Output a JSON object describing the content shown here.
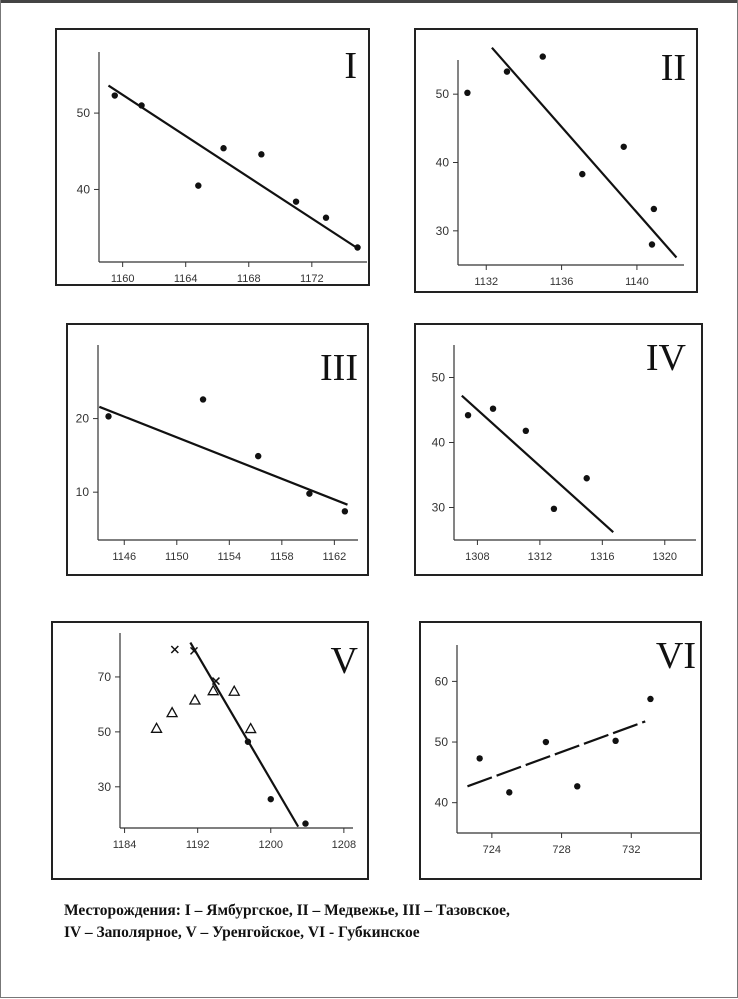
{
  "caption": {
    "line1": "Месторождения: I – Ямбургское, II – Медвежье, III – Тазовское,",
    "line2": "IV – Заполярное, V – Уренгойское, VI - Губкинское"
  },
  "chart_data": [
    {
      "type": "scatter",
      "title": "I",
      "xticks": [
        1160,
        1164,
        1168,
        1172
      ],
      "yticks": [
        40,
        50
      ],
      "xlim": [
        1158.5,
        1175.5
      ],
      "ylim": [
        30.5,
        58
      ],
      "points": [
        {
          "x": 1159.5,
          "y": 52.3,
          "m": "dot"
        },
        {
          "x": 1161.2,
          "y": 51.0,
          "m": "dot"
        },
        {
          "x": 1164.8,
          "y": 40.5,
          "m": "dot"
        },
        {
          "x": 1166.4,
          "y": 45.4,
          "m": "dot"
        },
        {
          "x": 1168.8,
          "y": 44.6,
          "m": "dot"
        },
        {
          "x": 1171.0,
          "y": 38.4,
          "m": "dot"
        },
        {
          "x": 1172.9,
          "y": 36.3,
          "m": "dot"
        },
        {
          "x": 1174.9,
          "y": 32.4,
          "m": "dot"
        }
      ],
      "fit": {
        "x1": 1159.1,
        "y1": 53.6,
        "x2": 1174.9,
        "y2": 32.3
      }
    },
    {
      "type": "scatter",
      "title": "II",
      "xticks": [
        1132,
        1136,
        1140
      ],
      "yticks": [
        30,
        40,
        50
      ],
      "xlim": [
        1130.5,
        1142.5
      ],
      "ylim": [
        25,
        55
      ],
      "points": [
        {
          "x": 1131.0,
          "y": 50.2,
          "m": "dot"
        },
        {
          "x": 1133.1,
          "y": 53.3,
          "m": "dot"
        },
        {
          "x": 1135.0,
          "y": 55.5,
          "m": "dot"
        },
        {
          "x": 1137.1,
          "y": 38.3,
          "m": "dot"
        },
        {
          "x": 1139.3,
          "y": 42.3,
          "m": "dot"
        },
        {
          "x": 1140.9,
          "y": 33.2,
          "m": "dot"
        },
        {
          "x": 1140.8,
          "y": 28.0,
          "m": "dot"
        }
      ],
      "fit": {
        "x1": 1132.3,
        "y1": 56.8,
        "x2": 1142.1,
        "y2": 26.1
      }
    },
    {
      "type": "scatter",
      "title": "III",
      "xticks": [
        1146,
        1150,
        1154,
        1158,
        1162
      ],
      "yticks": [
        10,
        20
      ],
      "xlim": [
        1144,
        1163.8
      ],
      "ylim": [
        3.5,
        30
      ],
      "points": [
        {
          "x": 1144.8,
          "y": 20.3,
          "m": "dot"
        },
        {
          "x": 1152.0,
          "y": 22.6,
          "m": "dot"
        },
        {
          "x": 1156.2,
          "y": 14.9,
          "m": "dot"
        },
        {
          "x": 1160.1,
          "y": 9.8,
          "m": "dot"
        },
        {
          "x": 1162.8,
          "y": 7.4,
          "m": "dot"
        }
      ],
      "fit": {
        "x1": 1144.1,
        "y1": 21.6,
        "x2": 1163.0,
        "y2": 8.3
      }
    },
    {
      "type": "scatter",
      "title": "IV",
      "xticks": [
        1308,
        1312,
        1316,
        1320
      ],
      "yticks": [
        30,
        40,
        50
      ],
      "xlim": [
        1306.5,
        1322
      ],
      "ylim": [
        25,
        55
      ],
      "points": [
        {
          "x": 1307.4,
          "y": 44.2,
          "m": "dot"
        },
        {
          "x": 1309.0,
          "y": 45.2,
          "m": "dot"
        },
        {
          "x": 1311.1,
          "y": 41.8,
          "m": "dot"
        },
        {
          "x": 1312.9,
          "y": 29.8,
          "m": "dot"
        },
        {
          "x": 1315.0,
          "y": 34.5,
          "m": "dot"
        }
      ],
      "fit": {
        "x1": 1307.0,
        "y1": 47.2,
        "x2": 1316.7,
        "y2": 26.2
      }
    },
    {
      "type": "scatter",
      "title": "V",
      "xticks": [
        1184,
        1192,
        1200,
        1208
      ],
      "yticks": [
        30,
        50,
        70
      ],
      "xlim": [
        1183.5,
        1209
      ],
      "ylim": [
        15,
        86
      ],
      "points": [
        {
          "x": 1187.5,
          "y": 51.3,
          "m": "tri"
        },
        {
          "x": 1189.2,
          "y": 57.0,
          "m": "tri"
        },
        {
          "x": 1189.5,
          "y": 80.0,
          "m": "cross"
        },
        {
          "x": 1191.6,
          "y": 79.5,
          "m": "cross"
        },
        {
          "x": 1191.7,
          "y": 61.6,
          "m": "tri"
        },
        {
          "x": 1193.7,
          "y": 65.0,
          "m": "tri"
        },
        {
          "x": 1194.0,
          "y": 68.5,
          "m": "cross"
        },
        {
          "x": 1196.0,
          "y": 64.8,
          "m": "tri"
        },
        {
          "x": 1197.8,
          "y": 51.2,
          "m": "tri"
        },
        {
          "x": 1197.5,
          "y": 46.4,
          "m": "dot"
        },
        {
          "x": 1200.0,
          "y": 25.5,
          "m": "dot"
        },
        {
          "x": 1203.8,
          "y": 16.6,
          "m": "dot"
        }
      ],
      "fit": {
        "x1": 1191.2,
        "y1": 82.5,
        "x2": 1203.0,
        "y2": 15.5
      }
    },
    {
      "type": "scatter",
      "title": "VI",
      "xticks": [
        724,
        728,
        732
      ],
      "yticks": [
        40,
        50,
        60
      ],
      "xlim": [
        722,
        736
      ],
      "ylim": [
        35,
        66
      ],
      "points": [
        {
          "x": 723.3,
          "y": 47.3,
          "m": "dot"
        },
        {
          "x": 725.0,
          "y": 41.7,
          "m": "dot"
        },
        {
          "x": 727.1,
          "y": 50.0,
          "m": "dot"
        },
        {
          "x": 728.9,
          "y": 42.7,
          "m": "dot"
        },
        {
          "x": 731.1,
          "y": 50.2,
          "m": "dot"
        },
        {
          "x": 733.1,
          "y": 57.1,
          "m": "dot"
        }
      ],
      "fit": {
        "x1": 722.6,
        "y1": 42.7,
        "x2": 732.8,
        "y2": 53.4
      }
    }
  ]
}
